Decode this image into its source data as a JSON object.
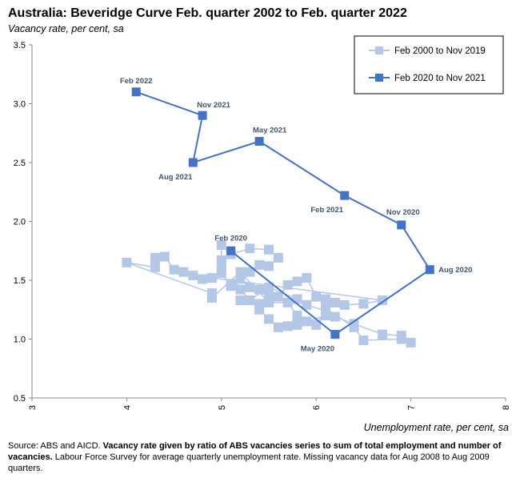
{
  "chart_data": {
    "type": "scatter",
    "title": "Australia: Beveridge Curve Feb. quarter 2002 to Feb. quarter 2022",
    "ylabel": "Vacancy rate, per cent, sa",
    "xlabel": "Unemployment rate, per cent, sa",
    "xlim": [
      3,
      8
    ],
    "ylim": [
      0.5,
      3.5
    ],
    "x_ticks": [
      "3",
      "4",
      "5",
      "6",
      "7",
      "8"
    ],
    "y_ticks": [
      "0.5",
      "1.0",
      "1.5",
      "2.0",
      "2.5",
      "3.0",
      "3.5"
    ],
    "legend_position": "top-right",
    "grid": false,
    "series": [
      {
        "name": "Feb 2000 to Nov 2019",
        "color": "#b4c7e7",
        "marker": "square",
        "line": true,
        "points": [
          [
            6.1,
            1.26
          ],
          [
            6.4,
            1.1
          ],
          [
            6.5,
            0.99
          ],
          [
            6.9,
            1.0
          ],
          [
            7.0,
            0.97
          ],
          [
            6.9,
            1.03
          ],
          [
            6.7,
            1.04
          ],
          [
            6.4,
            1.13
          ],
          [
            6.2,
            1.19
          ],
          [
            6.1,
            1.2
          ],
          [
            5.9,
            1.15
          ],
          [
            5.8,
            1.12
          ],
          [
            5.7,
            1.11
          ],
          [
            5.6,
            1.1
          ],
          [
            5.5,
            1.17
          ],
          [
            5.4,
            1.25
          ],
          [
            5.3,
            1.33
          ],
          [
            5.2,
            1.42
          ],
          [
            5.1,
            1.45
          ],
          [
            5.0,
            1.56
          ],
          [
            5.0,
            1.62
          ],
          [
            5.0,
            1.67
          ],
          [
            5.0,
            1.8
          ],
          [
            5.1,
            1.72
          ],
          [
            5.3,
            1.77
          ],
          [
            5.5,
            1.76
          ],
          [
            5.6,
            1.69
          ],
          [
            5.5,
            1.62
          ],
          [
            5.4,
            1.63
          ],
          [
            5.3,
            1.57
          ],
          [
            5.2,
            1.51
          ],
          [
            5.1,
            1.47
          ],
          [
            5.3,
            1.44
          ],
          [
            5.4,
            1.42
          ],
          [
            5.5,
            1.37
          ],
          [
            5.6,
            1.36
          ],
          [
            5.7,
            1.46
          ],
          [
            5.8,
            1.49
          ],
          [
            5.9,
            1.52
          ],
          [
            6.0,
            1.36
          ],
          [
            6.1,
            1.34
          ],
          [
            6.2,
            1.31
          ],
          [
            6.3,
            1.29
          ],
          [
            6.5,
            1.3
          ],
          [
            6.7,
            1.33
          ],
          [
            4.9,
            1.52
          ],
          [
            4.8,
            1.51
          ],
          [
            4.7,
            1.54
          ],
          [
            4.6,
            1.57
          ],
          [
            4.5,
            1.59
          ],
          [
            4.4,
            1.7
          ],
          [
            4.3,
            1.69
          ],
          [
            4.3,
            1.61
          ],
          [
            4.0,
            1.65
          ],
          [
            4.9,
            1.39
          ],
          [
            4.9,
            1.35
          ],
          [
            5.2,
            1.57
          ],
          [
            5.5,
            1.31
          ],
          [
            5.7,
            1.31
          ],
          [
            5.8,
            1.2
          ],
          [
            6.0,
            1.12
          ],
          [
            6.1,
            1.24
          ],
          [
            5.9,
            1.29
          ],
          [
            5.8,
            1.34
          ],
          [
            5.5,
            1.44
          ],
          [
            5.3,
            1.33
          ],
          [
            5.4,
            1.3
          ],
          [
            5.2,
            1.33
          ]
        ]
      },
      {
        "name": "Feb 2020 to Nov 2021",
        "color": "#4472c4",
        "marker": "square",
        "line": true,
        "points": [
          {
            "x": 5.1,
            "y": 1.75,
            "label": "Feb 2020"
          },
          {
            "x": 6.2,
            "y": 1.04,
            "label": "May 2020"
          },
          {
            "x": 7.2,
            "y": 1.59,
            "label": "Aug 2020"
          },
          {
            "x": 6.9,
            "y": 1.97,
            "label": "Nov 2020"
          },
          {
            "x": 6.3,
            "y": 2.22,
            "label": "Feb 2021"
          },
          {
            "x": 5.4,
            "y": 2.68,
            "label": "May 2021"
          },
          {
            "x": 4.7,
            "y": 2.5,
            "label": "Aug 2021"
          },
          {
            "x": 4.8,
            "y": 2.9,
            "label": "Nov 2021"
          },
          {
            "x": 4.1,
            "y": 3.1,
            "label": "Feb 2022"
          }
        ]
      }
    ]
  },
  "source_note": {
    "prefix": "Source: ABS and AICD. ",
    "bold": "Vacancy rate given by ratio of ABS vacancies series to sum of total employment and number of vacancies.",
    "suffix": " Labour Force Survey for average quarterly unemployment rate.  Missing vacancy data for Aug 2008 to Aug 2009 quarters."
  }
}
